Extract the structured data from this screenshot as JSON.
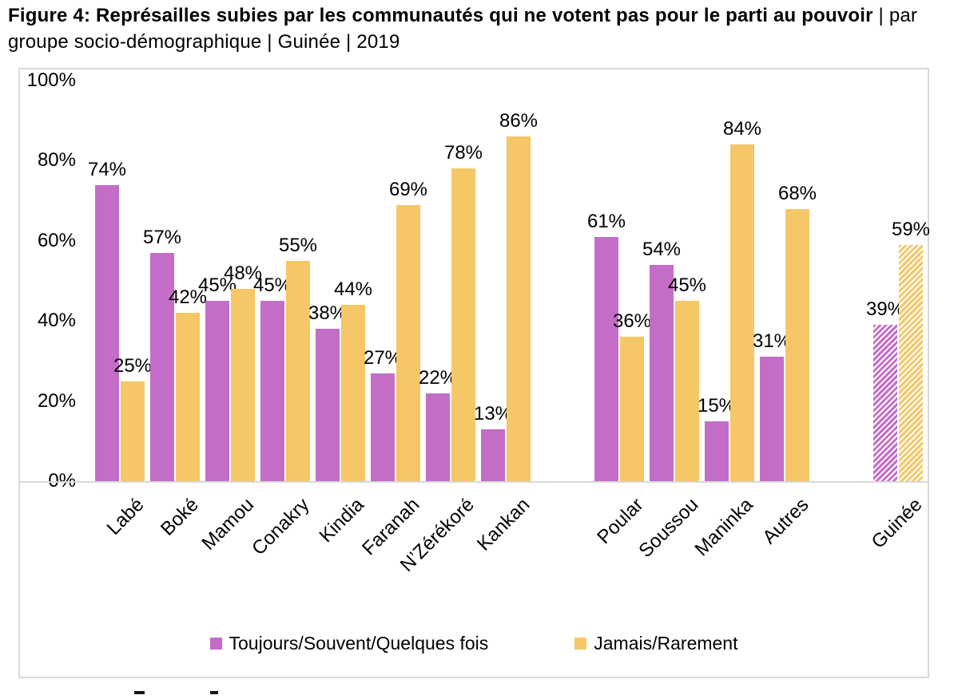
{
  "figure": {
    "title_bold": "Figure 4: Représailles subies par les communautés qui ne votent pas pour le parti au pouvoir",
    "title_regular": " | par groupe socio-démographique | Guinée | 2019"
  },
  "colors": {
    "toujours": "#C46DC7",
    "jamais": "#F6C767",
    "frame_gray": "#D9D9D9",
    "text": "#000000"
  },
  "legend": {
    "items": [
      {
        "label": "Toujours/Souvent/Quelques fois",
        "color": "#C46DC7"
      },
      {
        "label": "Jamais/Rarement",
        "color": "#F6C767"
      }
    ]
  },
  "chart_data": {
    "type": "bar",
    "title": "Figure 4: Représailles subies par les communautés qui ne votent pas pour le parti au pouvoir | par groupe socio-démographique | Guinée | 2019",
    "unit": "%",
    "ylim": [
      0,
      100
    ],
    "yticks": [
      0,
      20,
      40,
      60,
      80,
      100
    ],
    "ytick_labels": [
      "0%",
      "20%",
      "40%",
      "60%",
      "80%",
      "100%"
    ],
    "grid": false,
    "legend_position": "bottom-center",
    "series_names": [
      "Toujours/Souvent/Quelques fois",
      "Jamais/Rarement"
    ],
    "value_label_suffix": "%",
    "groups": [
      {
        "name": "regions",
        "hatched": false,
        "items": [
          {
            "label": "Labé",
            "values": [
              74,
              25
            ]
          },
          {
            "label": "Boké",
            "values": [
              57,
              42
            ]
          },
          {
            "label": "Mamou",
            "values": [
              45,
              48
            ]
          },
          {
            "label": "Conakry",
            "values": [
              45,
              55
            ]
          },
          {
            "label": "Kindia",
            "values": [
              38,
              44
            ]
          },
          {
            "label": "Faranah",
            "values": [
              27,
              69
            ]
          },
          {
            "label": "N’Zérékoré",
            "values": [
              22,
              78
            ]
          },
          {
            "label": "Kankan",
            "values": [
              13,
              86
            ]
          }
        ]
      },
      {
        "name": "groupes-ethniques",
        "hatched": false,
        "items": [
          {
            "label": "Poular",
            "values": [
              61,
              36
            ]
          },
          {
            "label": "Soussou",
            "values": [
              54,
              45
            ]
          },
          {
            "label": "Maninka",
            "values": [
              15,
              84
            ]
          },
          {
            "label": "Autres",
            "values": [
              31,
              68
            ]
          }
        ]
      },
      {
        "name": "national",
        "hatched": true,
        "items": [
          {
            "label": "Guinée",
            "values": [
              39,
              59
            ]
          }
        ]
      }
    ]
  }
}
